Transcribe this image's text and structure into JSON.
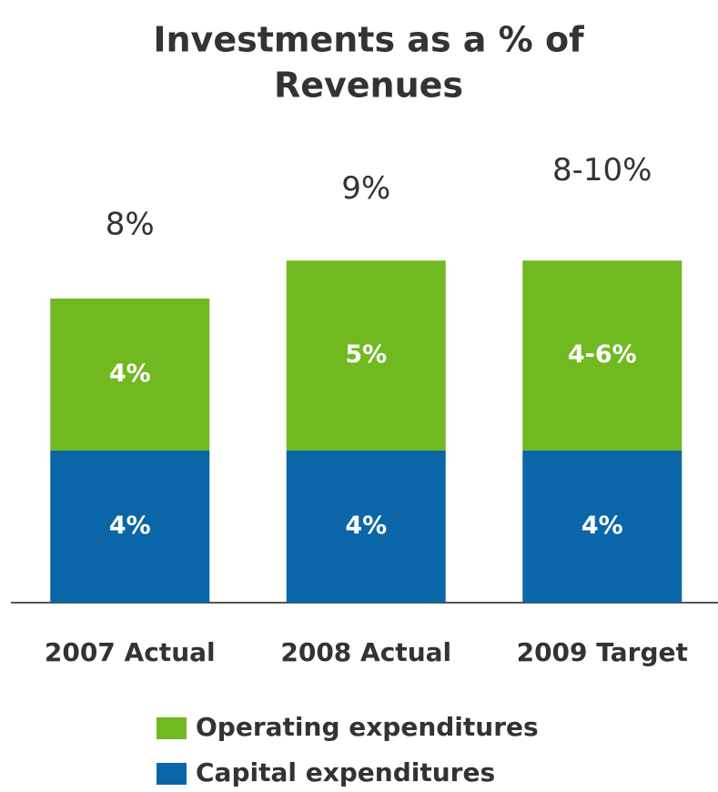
{
  "chart_data": {
    "type": "stacked_bar",
    "title": [
      "Investments as a % of",
      "Revenues"
    ],
    "categories": [
      "2007 Actual",
      "2008 Actual",
      "2009 Target"
    ],
    "series": [
      {
        "name": "Capital expenditures",
        "color": "#0a66a8",
        "values": [
          4,
          4,
          4
        ],
        "value_labels": [
          "4%",
          "4%",
          "4%"
        ]
      },
      {
        "name": "Operating expenditures",
        "color": "#70b921",
        "values": [
          4,
          5,
          5
        ],
        "value_labels": [
          "4%",
          "5%",
          "4-6%"
        ]
      }
    ],
    "total_labels": [
      "8%",
      "9%",
      "8-10%"
    ],
    "ylim": [
      0,
      10
    ]
  }
}
